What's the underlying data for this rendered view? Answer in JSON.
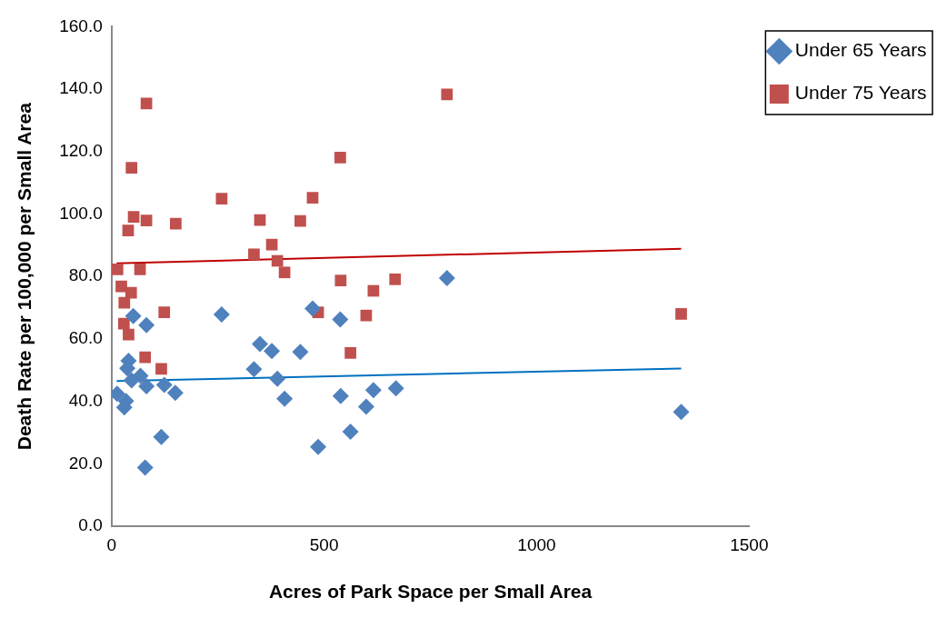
{
  "chart_data": {
    "type": "scatter",
    "xlabel": "Acres of Park Space per Small Area",
    "ylabel": "Death Rate per 100,000 per Small Area",
    "xlim": [
      0,
      1500
    ],
    "xticks": [
      0,
      500,
      1000,
      1500
    ],
    "ylim": [
      0,
      160
    ],
    "yticks": [
      {
        "value": 0,
        "label": "0.0"
      },
      {
        "value": 20,
        "label": "20.0"
      },
      {
        "value": 40,
        "label": "40.0"
      },
      {
        "value": 60,
        "label": "60.0"
      },
      {
        "value": 80,
        "label": "80.0"
      },
      {
        "value": 100,
        "label": "100.0"
      },
      {
        "value": 120,
        "label": "120.0"
      },
      {
        "value": 140,
        "label": "140.0"
      },
      {
        "value": 160,
        "label": "160.0"
      }
    ],
    "grid": false,
    "legend": "right",
    "series": [
      {
        "name": "Under 65 Years",
        "color": "#4f81bd",
        "marker": "diamond",
        "x": [
          51,
          82,
          40,
          37,
          68,
          47,
          82,
          124,
          150,
          13,
          34,
          30,
          117,
          79,
          259,
          473,
          789,
          538,
          349,
          377,
          444,
          335,
          390,
          407,
          539,
          616,
          669,
          599,
          562,
          486,
          1340
        ],
        "values": [
          67.3,
          64.4,
          53.0,
          50.6,
          48.2,
          46.7,
          44.8,
          45.3,
          42.7,
          42.4,
          40.1,
          38.1,
          28.6,
          18.8,
          67.8,
          69.7,
          79.5,
          66.2,
          58.4,
          56.1,
          55.8,
          50.3,
          47.2,
          40.8,
          41.7,
          43.6,
          44.2,
          38.3,
          30.3,
          25.4,
          36.6
        ]
      },
      {
        "name": "Under 75 Years",
        "color": "#c0504d",
        "marker": "square",
        "x": [
          82,
          47,
          52,
          82,
          39,
          151,
          14,
          67,
          23,
          46,
          30,
          124,
          29,
          40,
          79,
          117,
          538,
          259,
          473,
          349,
          444,
          377,
          335,
          390,
          407,
          539,
          616,
          667,
          486,
          599,
          562,
          789,
          1340
        ],
        "values": [
          135.4,
          114.8,
          99.1,
          97.9,
          94.7,
          96.9,
          82.3,
          82.3,
          76.8,
          74.8,
          71.6,
          68.5,
          64.9,
          61.4,
          54.1,
          50.4,
          118.1,
          104.9,
          105.2,
          98.1,
          97.8,
          90.2,
          87.1,
          85.0,
          81.3,
          78.7,
          75.4,
          79.1,
          68.5,
          67.5,
          55.5,
          138.3,
          68.0
        ]
      },
      {
        "type": "line",
        "color": "#0070c0",
        "marker": "none",
        "x": [
          12,
          1340
        ],
        "values": [
          46.5,
          50.5
        ]
      },
      {
        "type": "line",
        "color": "#c00000",
        "marker": "none",
        "x": [
          12,
          1340
        ],
        "values": [
          84.2,
          88.9
        ]
      }
    ]
  }
}
